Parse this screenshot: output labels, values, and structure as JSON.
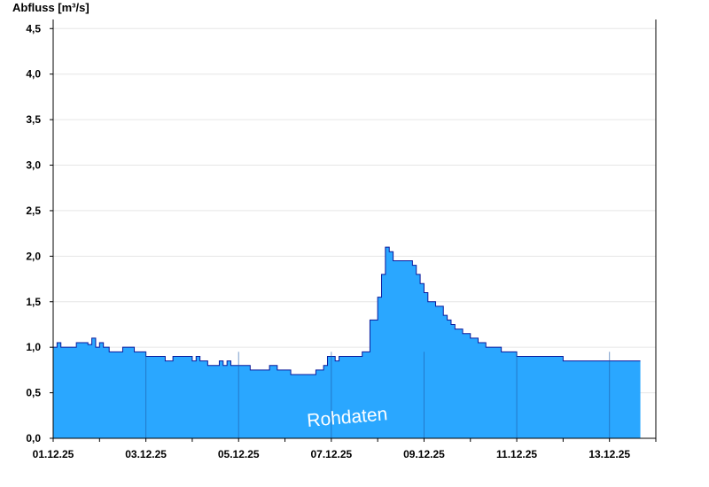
{
  "chart_data": {
    "type": "area",
    "ylabel": "Abfluss [m³/s]",
    "xlabel": "",
    "title": "",
    "watermark": "Rohdaten",
    "ylim": [
      0,
      4.6
    ],
    "xlim": [
      "2025-12-01T00:00",
      "2025-12-14T00:00"
    ],
    "y_ticks": [
      0,
      0.5,
      1,
      1.5,
      2,
      2.5,
      3,
      3.5,
      4,
      4.5
    ],
    "y_tick_labels": [
      "0,0",
      "0,5",
      "1,0",
      "1,5",
      "2,0",
      "2,5",
      "3,0",
      "3,5",
      "4,0",
      "4,5"
    ],
    "x_ticks": [
      "2025-12-01",
      "2025-12-03",
      "2025-12-05",
      "2025-12-07",
      "2025-12-09",
      "2025-12-11",
      "2025-12-13"
    ],
    "x_tick_labels": [
      "01.12.25",
      "03.12.25",
      "05.12.25",
      "07.12.25",
      "09.12.25",
      "11.12.25",
      "13.12.25"
    ],
    "grid": true,
    "fill_color": "#2aa7ff",
    "line_color": "#0a1a9c",
    "series": [
      {
        "x": [
          "2025-12-01T00:00",
          "2025-12-01T02:00",
          "2025-12-01T04:00",
          "2025-12-01T06:00",
          "2025-12-01T08:00",
          "2025-12-01T12:00",
          "2025-12-01T16:00",
          "2025-12-01T18:00",
          "2025-12-01T20:00",
          "2025-12-01T22:00",
          "2025-12-02T00:00",
          "2025-12-02T02:00",
          "2025-12-02T03:00",
          "2025-12-02T05:00",
          "2025-12-02T06:00",
          "2025-12-02T09:00",
          "2025-12-02T12:00",
          "2025-12-02T18:00",
          "2025-12-02T20:00",
          "2025-12-02T22:00",
          "2025-12-03T00:00",
          "2025-12-03T03:00",
          "2025-12-03T06:00",
          "2025-12-03T10:00",
          "2025-12-03T14:00",
          "2025-12-03T20:00",
          "2025-12-04T00:00",
          "2025-12-04T02:00",
          "2025-12-04T04:00",
          "2025-12-04T08:00",
          "2025-12-04T12:00",
          "2025-12-04T14:00",
          "2025-12-04T16:00",
          "2025-12-04T18:00",
          "2025-12-04T20:00",
          "2025-12-05T00:00",
          "2025-12-05T06:00",
          "2025-12-05T10:00",
          "2025-12-05T16:00",
          "2025-12-05T20:00",
          "2025-12-06T00:00",
          "2025-12-06T03:00",
          "2025-12-06T06:00",
          "2025-12-06T09:00",
          "2025-12-06T12:00",
          "2025-12-06T16:00",
          "2025-12-06T18:00",
          "2025-12-06T20:00",
          "2025-12-06T22:00",
          "2025-12-07T02:00",
          "2025-12-07T04:00",
          "2025-12-07T06:00",
          "2025-12-07T08:00",
          "2025-12-07T12:00",
          "2025-12-07T16:00",
          "2025-12-07T20:00",
          "2025-12-08T00:00",
          "2025-12-08T02:00",
          "2025-12-08T04:00",
          "2025-12-08T06:00",
          "2025-12-08T08:00",
          "2025-12-08T10:00",
          "2025-12-08T12:00",
          "2025-12-08T14:00",
          "2025-12-08T16:00",
          "2025-12-08T18:00",
          "2025-12-08T20:00",
          "2025-12-08T22:00",
          "2025-12-09T00:00",
          "2025-12-09T02:00",
          "2025-12-09T06:00",
          "2025-12-09T10:00",
          "2025-12-09T12:00",
          "2025-12-09T14:00",
          "2025-12-09T16:00",
          "2025-12-09T20:00",
          "2025-12-10T00:00",
          "2025-12-10T04:00",
          "2025-12-10T08:00",
          "2025-12-10T12:00",
          "2025-12-10T16:00",
          "2025-12-10T20:00",
          "2025-12-11T00:00",
          "2025-12-11T04:00",
          "2025-12-11T08:00",
          "2025-12-11T12:00",
          "2025-12-11T16:00",
          "2025-12-11T20:00",
          "2025-12-12T00:00",
          "2025-12-12T04:00",
          "2025-12-12T08:00",
          "2025-12-12T12:00",
          "2025-12-12T16:00",
          "2025-12-12T20:00",
          "2025-12-13T00:00",
          "2025-12-13T04:00",
          "2025-12-13T08:00",
          "2025-12-13T12:00"
        ],
        "y": [
          1.0,
          1.05,
          1.0,
          1.0,
          1.0,
          1.05,
          1.05,
          1.03,
          1.1,
          1.0,
          1.05,
          1.0,
          1.0,
          0.95,
          0.95,
          0.95,
          1.0,
          0.95,
          0.95,
          0.95,
          0.9,
          0.9,
          0.9,
          0.85,
          0.9,
          0.9,
          0.85,
          0.9,
          0.85,
          0.8,
          0.8,
          0.85,
          0.8,
          0.85,
          0.8,
          0.8,
          0.75,
          0.75,
          0.8,
          0.75,
          0.75,
          0.7,
          0.7,
          0.7,
          0.7,
          0.75,
          0.75,
          0.8,
          0.9,
          0.85,
          0.9,
          0.9,
          0.9,
          0.9,
          0.95,
          1.3,
          1.55,
          1.8,
          2.1,
          2.05,
          1.95,
          1.95,
          1.95,
          1.95,
          1.95,
          1.9,
          1.8,
          1.7,
          1.6,
          1.5,
          1.45,
          1.35,
          1.3,
          1.25,
          1.2,
          1.15,
          1.1,
          1.05,
          1.0,
          1.0,
          0.95,
          0.95,
          0.9,
          0.9,
          0.9,
          0.9,
          0.9,
          0.9,
          0.85,
          0.85,
          0.85,
          0.85,
          0.85,
          0.85,
          0.85,
          0.85,
          0.85,
          0.85
        ]
      }
    ]
  }
}
